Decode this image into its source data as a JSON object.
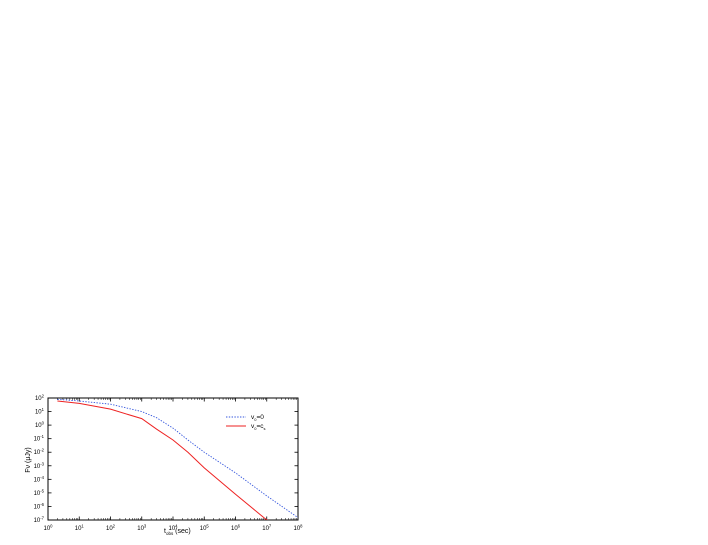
{
  "chart_data": {
    "type": "line",
    "xscale": "log",
    "yscale": "log",
    "xlim": [
      1,
      100000000.0
    ],
    "ylim": [
      1e-07,
      100.0
    ],
    "x_ticks": [
      {
        "base": "10",
        "exp": "0"
      },
      {
        "base": "10",
        "exp": "1"
      },
      {
        "base": "10",
        "exp": "2"
      },
      {
        "base": "10",
        "exp": "3"
      },
      {
        "base": "10",
        "exp": "4"
      },
      {
        "base": "10",
        "exp": "5"
      },
      {
        "base": "10",
        "exp": "6"
      },
      {
        "base": "10",
        "exp": "7"
      },
      {
        "base": "10",
        "exp": "8"
      }
    ],
    "y_ticks": [
      {
        "base": "10",
        "exp": "-7"
      },
      {
        "base": "10",
        "exp": "-6"
      },
      {
        "base": "10",
        "exp": "-5"
      },
      {
        "base": "10",
        "exp": "-4"
      },
      {
        "base": "10",
        "exp": "-3"
      },
      {
        "base": "10",
        "exp": "-2"
      },
      {
        "base": "10",
        "exp": "-1"
      },
      {
        "base": "10",
        "exp": "0"
      },
      {
        "base": "10",
        "exp": "1"
      },
      {
        "base": "10",
        "exp": "2"
      }
    ],
    "xlabel": {
      "main": "t",
      "sub": "obs",
      "rest": " (sec)"
    },
    "ylabel": "Fν (μJy)",
    "grid": false,
    "legend_position": "top-right",
    "series": [
      {
        "legend": {
          "main": "v",
          "sub": "0",
          "rest": "=0"
        },
        "color": "#3355dd",
        "dash": "dotted",
        "x": [
          2,
          10,
          100,
          1000,
          3000,
          10000,
          30000,
          100000,
          1000000,
          10000000,
          100000000
        ],
        "y": [
          80,
          60,
          35,
          10,
          3.5,
          0.6,
          0.08,
          0.01,
          0.0003,
          6e-06,
          1.5e-07
        ]
      },
      {
        "legend": {
          "main": "v",
          "sub": "0",
          "rest": "=c",
          "sub2": "s"
        },
        "color": "#ee2222",
        "dash": "solid",
        "x": [
          2,
          10,
          100,
          1000,
          3000,
          10000,
          30000,
          100000,
          1000000,
          10000000,
          20000000
        ],
        "y": [
          60,
          40,
          15,
          3,
          0.5,
          0.08,
          0.01,
          0.0007,
          8e-06,
          1e-07,
          5e-08
        ]
      }
    ]
  }
}
